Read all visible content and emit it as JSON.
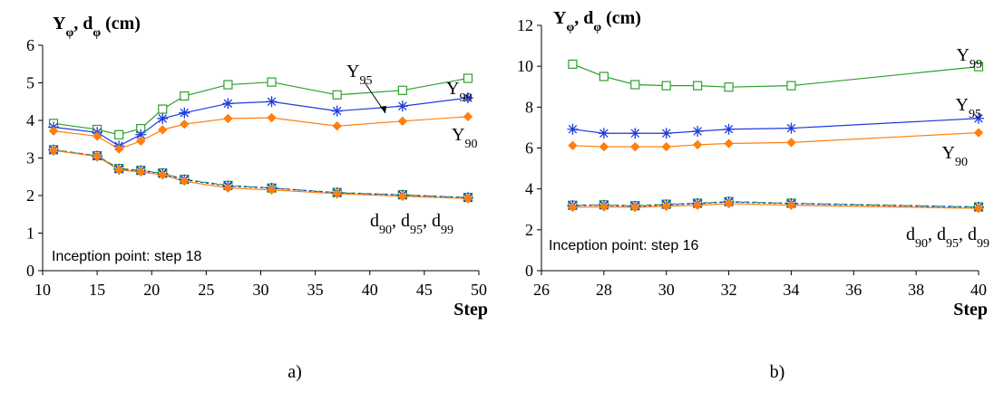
{
  "chart_data": [
    {
      "type": "line",
      "panel_label": "a)",
      "ylabel": {
        "main": "Y",
        "sub1": "φ",
        "mid": ", d",
        "sub2": "φ",
        "tail": " (cm)"
      },
      "xlabel": "Step",
      "xlim": [
        10,
        50
      ],
      "ylim": [
        0,
        6
      ],
      "xticks": [
        10,
        15,
        20,
        25,
        30,
        35,
        40,
        45,
        50
      ],
      "yticks": [
        0,
        1,
        2,
        3,
        4,
        5,
        6
      ],
      "annotation": "Inception point: step 18",
      "x": [
        11,
        15,
        17,
        19,
        21,
        23,
        27,
        31,
        37,
        43,
        49
      ],
      "series": [
        {
          "key": "Y99",
          "color": "#2ca02c",
          "marker": "square",
          "dash": "",
          "values": [
            3.92,
            3.76,
            3.62,
            3.78,
            4.3,
            4.65,
            4.95,
            5.02,
            4.68,
            4.8,
            5.12
          ]
        },
        {
          "key": "Y95",
          "color": "#1f3bdb",
          "marker": "star",
          "dash": "",
          "values": [
            3.82,
            3.68,
            3.32,
            3.62,
            4.05,
            4.2,
            4.45,
            4.5,
            4.25,
            4.38,
            4.6
          ]
        },
        {
          "key": "Y90",
          "color": "#ff7f0e",
          "marker": "diamond",
          "dash": "",
          "values": [
            3.72,
            3.58,
            3.24,
            3.45,
            3.75,
            3.9,
            4.05,
            4.07,
            3.85,
            3.98,
            4.1
          ]
        },
        {
          "key": "d99",
          "color": "#2ca02c",
          "marker": "square-cross",
          "dash": "6,3",
          "values": [
            3.22,
            3.06,
            2.72,
            2.67,
            2.6,
            2.43,
            2.27,
            2.2,
            2.08,
            2.02,
            1.95
          ]
        },
        {
          "key": "d95",
          "color": "#1f3bdb",
          "marker": "star",
          "dash": "3,3",
          "values": [
            3.21,
            3.05,
            2.7,
            2.66,
            2.58,
            2.42,
            2.25,
            2.2,
            2.07,
            2.01,
            1.94
          ]
        },
        {
          "key": "d90",
          "color": "#ff7f0e",
          "marker": "diamond",
          "dash": "",
          "values": [
            3.2,
            3.04,
            2.68,
            2.63,
            2.55,
            2.38,
            2.2,
            2.15,
            2.05,
            1.98,
            1.92
          ]
        }
      ],
      "labels": [
        {
          "key": "Y99",
          "text": "Y",
          "sub": "99"
        },
        {
          "key": "Y95",
          "text": "Y",
          "sub": "95"
        },
        {
          "key": "Y90",
          "text": "Y",
          "sub": "90"
        },
        {
          "key": "d",
          "parts": [
            [
              "d",
              "90"
            ],
            [
              "d",
              "95"
            ],
            [
              "d",
              "99"
            ]
          ]
        }
      ]
    },
    {
      "type": "line",
      "panel_label": "b)",
      "ylabel": {
        "main": "Y",
        "sub1": "φ",
        "mid": ", d",
        "sub2": "φ",
        "tail": " (cm)"
      },
      "xlabel": "Step",
      "xlim": [
        26,
        40
      ],
      "ylim": [
        0,
        12
      ],
      "xticks": [
        26,
        28,
        30,
        32,
        34,
        36,
        38,
        40
      ],
      "yticks": [
        0,
        2,
        4,
        6,
        8,
        10,
        12
      ],
      "annotation": "Inception point: step 16",
      "x": [
        27,
        28,
        29,
        30,
        31,
        32,
        34,
        40
      ],
      "series": [
        {
          "key": "Y99",
          "color": "#2ca02c",
          "marker": "square",
          "dash": "",
          "values": [
            10.1,
            9.5,
            9.1,
            9.05,
            9.05,
            8.98,
            9.05,
            9.98
          ]
        },
        {
          "key": "Y95",
          "color": "#1f3bdb",
          "marker": "star",
          "dash": "",
          "values": [
            6.92,
            6.72,
            6.72,
            6.72,
            6.82,
            6.92,
            6.97,
            7.45
          ]
        },
        {
          "key": "Y90",
          "color": "#ff7f0e",
          "marker": "diamond",
          "dash": "",
          "values": [
            6.12,
            6.06,
            6.06,
            6.06,
            6.16,
            6.22,
            6.27,
            6.75
          ]
        },
        {
          "key": "d99",
          "color": "#2ca02c",
          "marker": "square-cross",
          "dash": "6,3",
          "values": [
            3.2,
            3.22,
            3.18,
            3.25,
            3.3,
            3.38,
            3.3,
            3.12
          ]
        },
        {
          "key": "d95",
          "color": "#1f3bdb",
          "marker": "star",
          "dash": "3,3",
          "values": [
            3.18,
            3.2,
            3.15,
            3.22,
            3.28,
            3.36,
            3.28,
            3.1
          ]
        },
        {
          "key": "d90",
          "color": "#ff7f0e",
          "marker": "diamond",
          "dash": "",
          "values": [
            3.1,
            3.12,
            3.1,
            3.15,
            3.2,
            3.28,
            3.2,
            3.05
          ]
        }
      ],
      "labels": [
        {
          "key": "Y99",
          "text": "Y",
          "sub": "99"
        },
        {
          "key": "Y95",
          "text": "Y",
          "sub": "95"
        },
        {
          "key": "Y90",
          "text": "Y",
          "sub": "90"
        },
        {
          "key": "d",
          "parts": [
            [
              "d",
              "90"
            ],
            [
              "d",
              "95"
            ],
            [
              "d",
              "99"
            ]
          ]
        }
      ]
    }
  ]
}
